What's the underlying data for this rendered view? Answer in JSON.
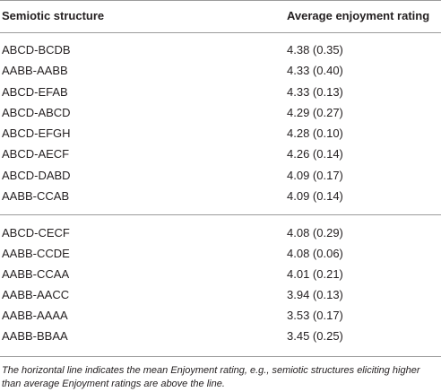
{
  "table": {
    "headers": {
      "structure": "Semiotic structure",
      "rating": "Average enjoyment rating"
    },
    "above_mean_rows": [
      {
        "structure": "ABCD-BCDB",
        "rating": "4.38 (0.35)"
      },
      {
        "structure": "AABB-AABB",
        "rating": "4.33 (0.40)"
      },
      {
        "structure": "ABCD-EFAB",
        "rating": "4.33 (0.13)"
      },
      {
        "structure": "ABCD-ABCD",
        "rating": "4.29 (0.27)"
      },
      {
        "structure": "ABCD-EFGH",
        "rating": "4.28 (0.10)"
      },
      {
        "structure": "ABCD-AECF",
        "rating": "4.26 (0.14)"
      },
      {
        "structure": "ABCD-DABD",
        "rating": "4.09 (0.17)"
      },
      {
        "structure": "AABB-CCAB",
        "rating": "4.09 (0.14)"
      }
    ],
    "below_mean_rows": [
      {
        "structure": "ABCD-CECF",
        "rating": "4.08 (0.29)"
      },
      {
        "structure": "AABB-CCDE",
        "rating": "4.08 (0.06)"
      },
      {
        "structure": "AABB-CCAA",
        "rating": "4.01 (0.21)"
      },
      {
        "structure": "AABB-AACC",
        "rating": "3.94 (0.13)"
      },
      {
        "structure": "AABB-AAAA",
        "rating": "3.53 (0.17)"
      },
      {
        "structure": "AABB-BBAA",
        "rating": "3.45 (0.25)"
      }
    ],
    "footnote": "The horizontal line indicates the mean Enjoyment rating, e.g., semiotic structures eliciting higher than average Enjoyment ratings are above the line."
  }
}
